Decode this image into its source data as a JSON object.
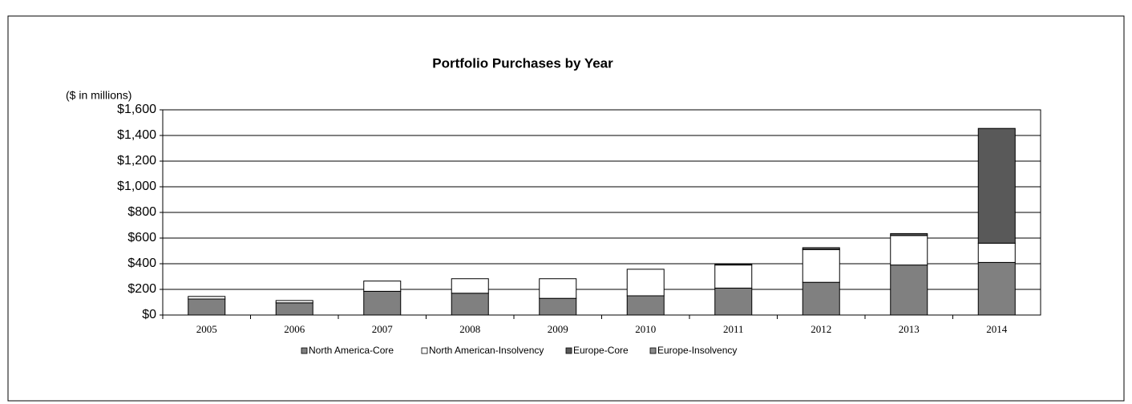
{
  "chart_data": {
    "type": "stacked_bar",
    "title": "Portfolio Purchases by Year",
    "y_label": "($ in millions)",
    "categories": [
      "2005",
      "2006",
      "2007",
      "2008",
      "2009",
      "2010",
      "2011",
      "2012",
      "2013",
      "2014"
    ],
    "series": [
      {
        "name": "North America-Core",
        "color": "#808080",
        "values": [
          125,
          95,
          185,
          170,
          130,
          150,
          210,
          255,
          390,
          410
        ]
      },
      {
        "name": "North American-Insolvency",
        "color": "#ffffff",
        "values": [
          20,
          18,
          80,
          113,
          153,
          207,
          180,
          255,
          230,
          150
        ]
      },
      {
        "name": "Europe-Core",
        "color": "#595959",
        "values": [
          0,
          0,
          0,
          0,
          0,
          0,
          5,
          15,
          15,
          895
        ]
      },
      {
        "name": "Europe-Insolvency",
        "color": "#8c8c8c",
        "values": [
          0,
          0,
          0,
          0,
          0,
          0,
          0,
          0,
          0,
          0
        ]
      }
    ],
    "ylim": [
      0,
      1600
    ],
    "yticks": [
      {
        "value": 0,
        "label": "$0"
      },
      {
        "value": 200,
        "label": "$200"
      },
      {
        "value": 400,
        "label": "$400"
      },
      {
        "value": 600,
        "label": "$600"
      },
      {
        "value": 800,
        "label": "$800"
      },
      {
        "value": 1000,
        "label": "$1,000"
      },
      {
        "value": 1200,
        "label": "$1,200"
      },
      {
        "value": 1400,
        "label": "$1,400"
      },
      {
        "value": 1600,
        "label": "$1,600"
      }
    ],
    "grid": true
  }
}
